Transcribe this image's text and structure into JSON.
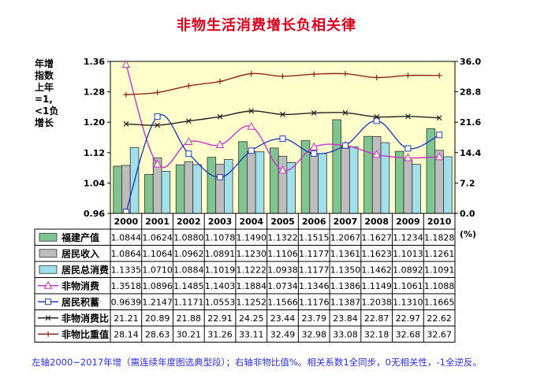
{
  "title": "非物生活消费增长负相关律",
  "left_axis_label_lines": [
    "年增",
    "指数",
    "上年",
    "=1,",
    "<1负",
    "增长"
  ],
  "right_axis_unit": "(%)",
  "footnote": "左轴2000~2017年增（需连续年度图选典型段）；右轴非物比值%。相关系数1全同步，0无相关性，-1全逆反。",
  "chart_data": {
    "type": "bar",
    "categories": [
      "2000",
      "2001",
      "2002",
      "2003",
      "2004",
      "2005",
      "2006",
      "2007",
      "2008",
      "2009",
      "2010"
    ],
    "left_axis": {
      "ylim": [
        0.96,
        1.36
      ],
      "ticks": [
        "0.96",
        "1.04",
        "1.12",
        "1.20",
        "1.28",
        "1.36"
      ]
    },
    "right_axis": {
      "ylim": [
        0,
        36
      ],
      "ticks": [
        "0.0",
        "7.2",
        "14.4",
        "21.6",
        "28.8",
        "36.0"
      ]
    },
    "series": [
      {
        "name": "福建产值",
        "type": "bar",
        "axis": "left",
        "color": "#7fc58f",
        "values": [
          "1.0844",
          "1.0624",
          "1.0880",
          "1.1078",
          "1.1490",
          "1.1322",
          "1.1515",
          "1.2067",
          "1.1627",
          "1.1234",
          "1.1828"
        ]
      },
      {
        "name": "居民收入",
        "type": "bar",
        "axis": "left",
        "color": "#bdbdbd",
        "values": [
          "1.0864",
          "1.1064",
          "1.0962",
          "1.0891",
          "1.1230",
          "1.1106",
          "1.1177",
          "1.1361",
          "1.1623",
          "1.1013",
          "1.1261"
        ]
      },
      {
        "name": "居民总消费",
        "type": "bar",
        "axis": "left",
        "color": "#9fe0ea",
        "values": [
          "1.1335",
          "1.0710",
          "1.0884",
          "1.1019",
          "1.1222",
          "1.0938",
          "1.1177",
          "1.1350",
          "1.1462",
          "1.0892",
          "1.1091"
        ]
      },
      {
        "name": "非物消费",
        "type": "line",
        "axis": "left",
        "color": "#cc33cc",
        "marker": "triangle",
        "values": [
          "1.3518",
          "1.0896",
          "1.1485",
          "1.1403",
          "1.1884",
          "1.0734",
          "1.1346",
          "1.1386",
          "1.1149",
          "1.1061",
          "1.1088"
        ]
      },
      {
        "name": "居民积蓄",
        "type": "line",
        "axis": "left",
        "color": "#1f3fbf",
        "marker": "square",
        "values": [
          "0.9639",
          "1.2147",
          "1.1171",
          "1.0553",
          "1.1252",
          "1.1566",
          "1.1176",
          "1.1387",
          "1.2038",
          "1.1310",
          "1.1665"
        ]
      },
      {
        "name": "非物消费比",
        "type": "line",
        "axis": "right",
        "color": "#222222",
        "marker": "x",
        "values": [
          "21.21",
          "20.89",
          "21.88",
          "22.91",
          "24.25",
          "23.44",
          "23.79",
          "23.84",
          "22.87",
          "22.97",
          "22.62"
        ]
      },
      {
        "name": "非物比重值",
        "type": "line",
        "axis": "right",
        "color": "#8b2a1a",
        "marker": "plus",
        "values": [
          "28.14",
          "28.63",
          "30.21",
          "31.26",
          "33.11",
          "32.49",
          "32.98",
          "33.08",
          "32.18",
          "32.68",
          "32.67"
        ]
      }
    ],
    "plot_background": "#ffffcc",
    "grid": false,
    "legend": "data table below chart"
  }
}
